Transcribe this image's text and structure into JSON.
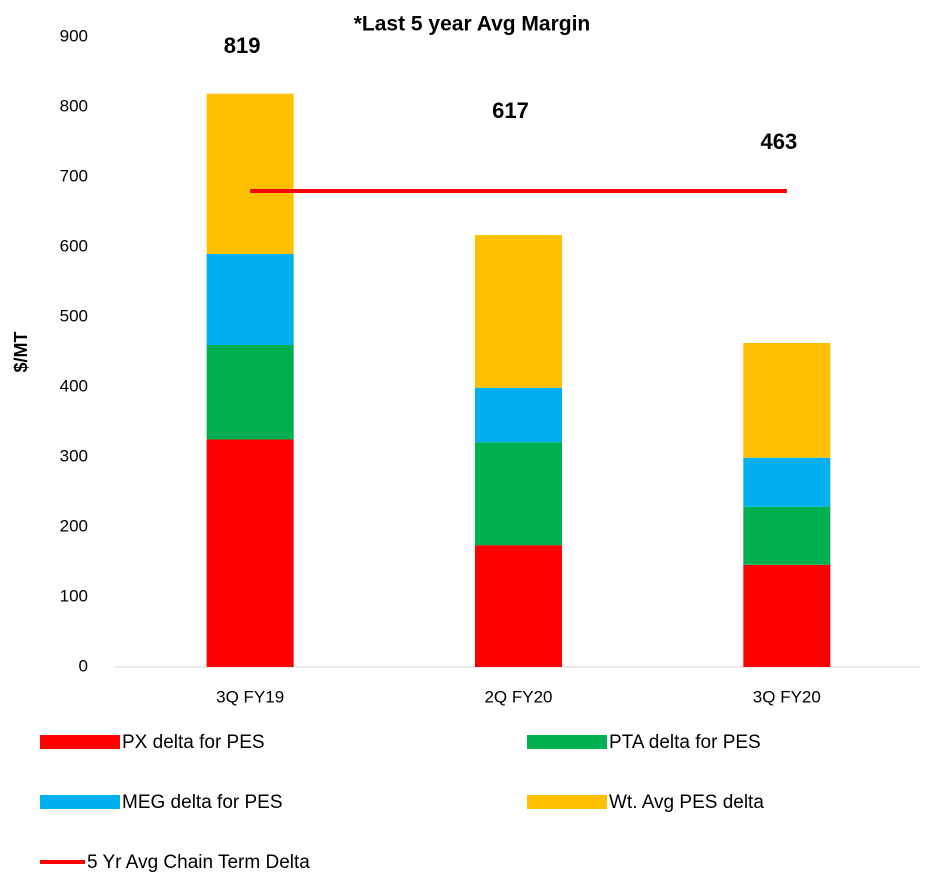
{
  "chart_data": {
    "type": "stacked_bar_line",
    "title": "*Last 5 year Avg Margin",
    "y_label": "$/MT",
    "categories": [
      "3Q FY19",
      "2Q FY20",
      "3Q FY20"
    ],
    "series": [
      {
        "name": "PX delta for PES",
        "color": "#ff0000",
        "values": [
          325,
          174,
          146
        ]
      },
      {
        "name": "PTA delta for PES",
        "color": "#00b050",
        "values": [
          135,
          147,
          83
        ]
      },
      {
        "name": "MEG delta for PES",
        "color": "#00b0f0",
        "values": [
          130,
          78,
          70
        ]
      },
      {
        "name": "Wt. Avg PES delta",
        "color": "#ffc000",
        "values": [
          229,
          218,
          164
        ]
      }
    ],
    "line": {
      "name": "5 Yr Avg Chain Term Delta",
      "color": "#ff0000",
      "values": [
        680,
        680,
        680
      ]
    },
    "totals": [
      819,
      617,
      463
    ],
    "ylim": [
      0,
      900
    ],
    "yticks": [
      0,
      100,
      200,
      300,
      400,
      500,
      600,
      700,
      800,
      900
    ],
    "grid": false
  }
}
